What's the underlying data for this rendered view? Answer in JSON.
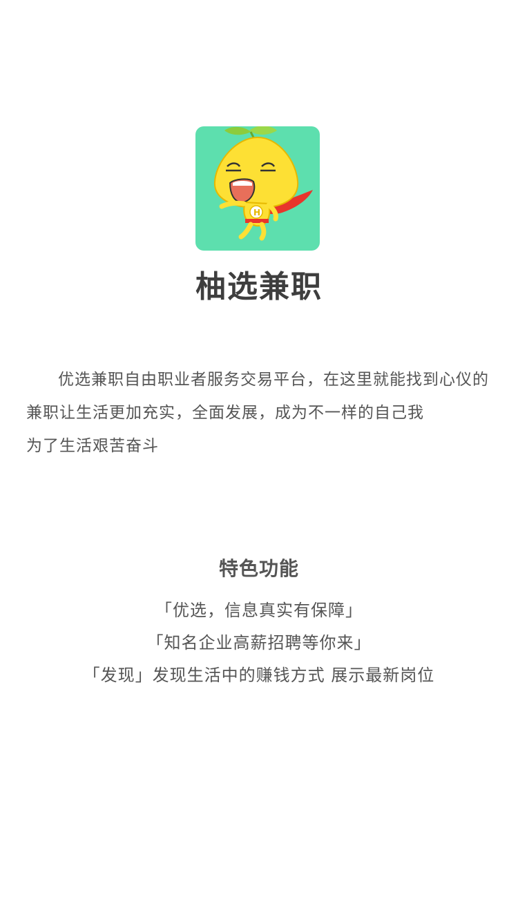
{
  "app": {
    "name": "柚选兼职",
    "logo_icon": "grapefruit-mascot-icon",
    "logo_bg_color": "#5ddfae"
  },
  "intro": {
    "paragraph_1": "优选兼职自由职业者服务交易平台，在这里就能找到心仪的兼职让生活更加充实，全面发展，成为不一样的自己我",
    "paragraph_2": "为了生活艰苦奋斗"
  },
  "features": {
    "title": "特色功能",
    "items": [
      "「优选，信息真实有保障」",
      "「知名企业高薪招聘等你来」",
      "「发现」发现生活中的赚钱方式 展示最新岗位"
    ]
  }
}
